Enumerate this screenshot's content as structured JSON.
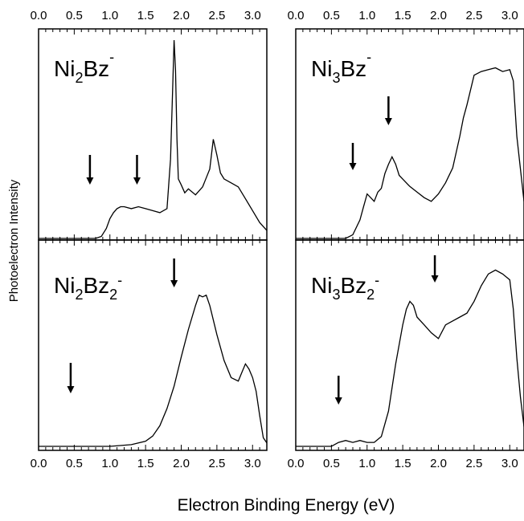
{
  "figure": {
    "xlabel": "Electron Binding Energy (eV)",
    "ylabel": "Photoelectron Intensity"
  },
  "colors": {
    "trace": "#000000",
    "frame": "#000000",
    "background": "#ffffff"
  },
  "chart_data": [
    {
      "type": "line",
      "label": {
        "base": "Ni",
        "sub1": "2",
        "mid": "Bz",
        "sup": "-"
      },
      "xlim": [
        0.0,
        3.2
      ],
      "ylim": [
        0,
        1
      ],
      "xticks": [
        "0.0",
        "0.5",
        "1.0",
        "1.5",
        "2.0",
        "2.5",
        "3.0"
      ],
      "x": [
        0.0,
        0.8,
        0.88,
        0.95,
        1.0,
        1.05,
        1.1,
        1.15,
        1.2,
        1.3,
        1.4,
        1.5,
        1.6,
        1.7,
        1.8,
        1.85,
        1.88,
        1.9,
        1.92,
        1.94,
        1.96,
        2.0,
        2.05,
        2.1,
        2.2,
        2.3,
        2.4,
        2.45,
        2.5,
        2.55,
        2.6,
        2.7,
        2.8,
        2.9,
        3.0,
        3.1,
        3.2
      ],
      "y": [
        0.0,
        0.0,
        0.01,
        0.05,
        0.1,
        0.13,
        0.15,
        0.16,
        0.16,
        0.15,
        0.16,
        0.15,
        0.14,
        0.13,
        0.15,
        0.4,
        0.75,
        1.0,
        0.85,
        0.5,
        0.3,
        0.27,
        0.23,
        0.25,
        0.22,
        0.26,
        0.35,
        0.5,
        0.42,
        0.33,
        0.3,
        0.28,
        0.26,
        0.2,
        0.14,
        0.08,
        0.04
      ],
      "arrows": [
        0.72,
        1.38
      ]
    },
    {
      "type": "line",
      "label": {
        "base": "Ni",
        "sub1": "3",
        "mid": "Bz",
        "sup": "-"
      },
      "xlim": [
        0.0,
        3.2
      ],
      "ylim": [
        0,
        1
      ],
      "xticks": [
        "0.0",
        "0.5",
        "1.0",
        "1.5",
        "2.0",
        "2.5",
        "3.0"
      ],
      "x": [
        0.0,
        0.7,
        0.8,
        0.9,
        0.95,
        1.0,
        1.05,
        1.1,
        1.15,
        1.2,
        1.25,
        1.3,
        1.35,
        1.4,
        1.45,
        1.5,
        1.6,
        1.7,
        1.8,
        1.9,
        2.0,
        2.1,
        2.2,
        2.3,
        2.35,
        2.4,
        2.5,
        2.6,
        2.7,
        2.8,
        2.9,
        3.0,
        3.05,
        3.1,
        3.2
      ],
      "y": [
        0.0,
        0.0,
        0.02,
        0.1,
        0.17,
        0.24,
        0.22,
        0.2,
        0.25,
        0.27,
        0.35,
        0.4,
        0.44,
        0.4,
        0.34,
        0.32,
        0.28,
        0.25,
        0.22,
        0.2,
        0.24,
        0.3,
        0.38,
        0.55,
        0.65,
        0.72,
        0.88,
        0.9,
        0.91,
        0.92,
        0.9,
        0.91,
        0.85,
        0.55,
        0.2
      ],
      "arrows": [
        0.8,
        1.3
      ]
    },
    {
      "type": "line",
      "label": {
        "base": "Ni",
        "sub1": "2",
        "mid": "Bz",
        "sub2": "2",
        "sup": "-"
      },
      "xlim": [
        0.0,
        3.2
      ],
      "ylim": [
        0,
        1
      ],
      "xticks": [
        "0.0",
        "0.5",
        "1.0",
        "1.5",
        "2.0",
        "2.5",
        "3.0"
      ],
      "x": [
        0.0,
        1.0,
        1.3,
        1.5,
        1.6,
        1.7,
        1.8,
        1.9,
        2.0,
        2.1,
        2.2,
        2.25,
        2.3,
        2.35,
        2.4,
        2.5,
        2.6,
        2.7,
        2.8,
        2.85,
        2.9,
        2.95,
        3.0,
        3.05,
        3.1,
        3.15,
        3.2
      ],
      "y": [
        0.0,
        0.0,
        0.01,
        0.03,
        0.06,
        0.12,
        0.22,
        0.35,
        0.52,
        0.68,
        0.82,
        0.88,
        0.87,
        0.88,
        0.82,
        0.65,
        0.5,
        0.4,
        0.38,
        0.43,
        0.48,
        0.45,
        0.4,
        0.32,
        0.18,
        0.05,
        0.02
      ],
      "arrows": [
        0.45,
        1.9
      ]
    },
    {
      "type": "line",
      "label": {
        "base": "Ni",
        "sub1": "3",
        "mid": "Bz",
        "sub2": "2",
        "sup": "-"
      },
      "xlim": [
        0.0,
        3.2
      ],
      "ylim": [
        0,
        1
      ],
      "xticks": [
        "0.0",
        "0.5",
        "1.0",
        "1.5",
        "2.0",
        "2.5",
        "3.0"
      ],
      "x": [
        0.0,
        0.5,
        0.6,
        0.7,
        0.8,
        0.9,
        1.0,
        1.1,
        1.2,
        1.3,
        1.4,
        1.5,
        1.55,
        1.6,
        1.65,
        1.7,
        1.8,
        1.9,
        2.0,
        2.1,
        2.2,
        2.3,
        2.4,
        2.5,
        2.6,
        2.7,
        2.8,
        2.9,
        3.0,
        3.05,
        3.1,
        3.15,
        3.2
      ],
      "y": [
        0.0,
        0.0,
        0.02,
        0.03,
        0.02,
        0.03,
        0.02,
        0.02,
        0.05,
        0.18,
        0.42,
        0.62,
        0.7,
        0.74,
        0.72,
        0.66,
        0.62,
        0.58,
        0.55,
        0.62,
        0.64,
        0.66,
        0.68,
        0.74,
        0.82,
        0.88,
        0.9,
        0.88,
        0.85,
        0.7,
        0.45,
        0.25,
        0.1
      ],
      "arrows": [
        0.6,
        1.95
      ]
    }
  ]
}
